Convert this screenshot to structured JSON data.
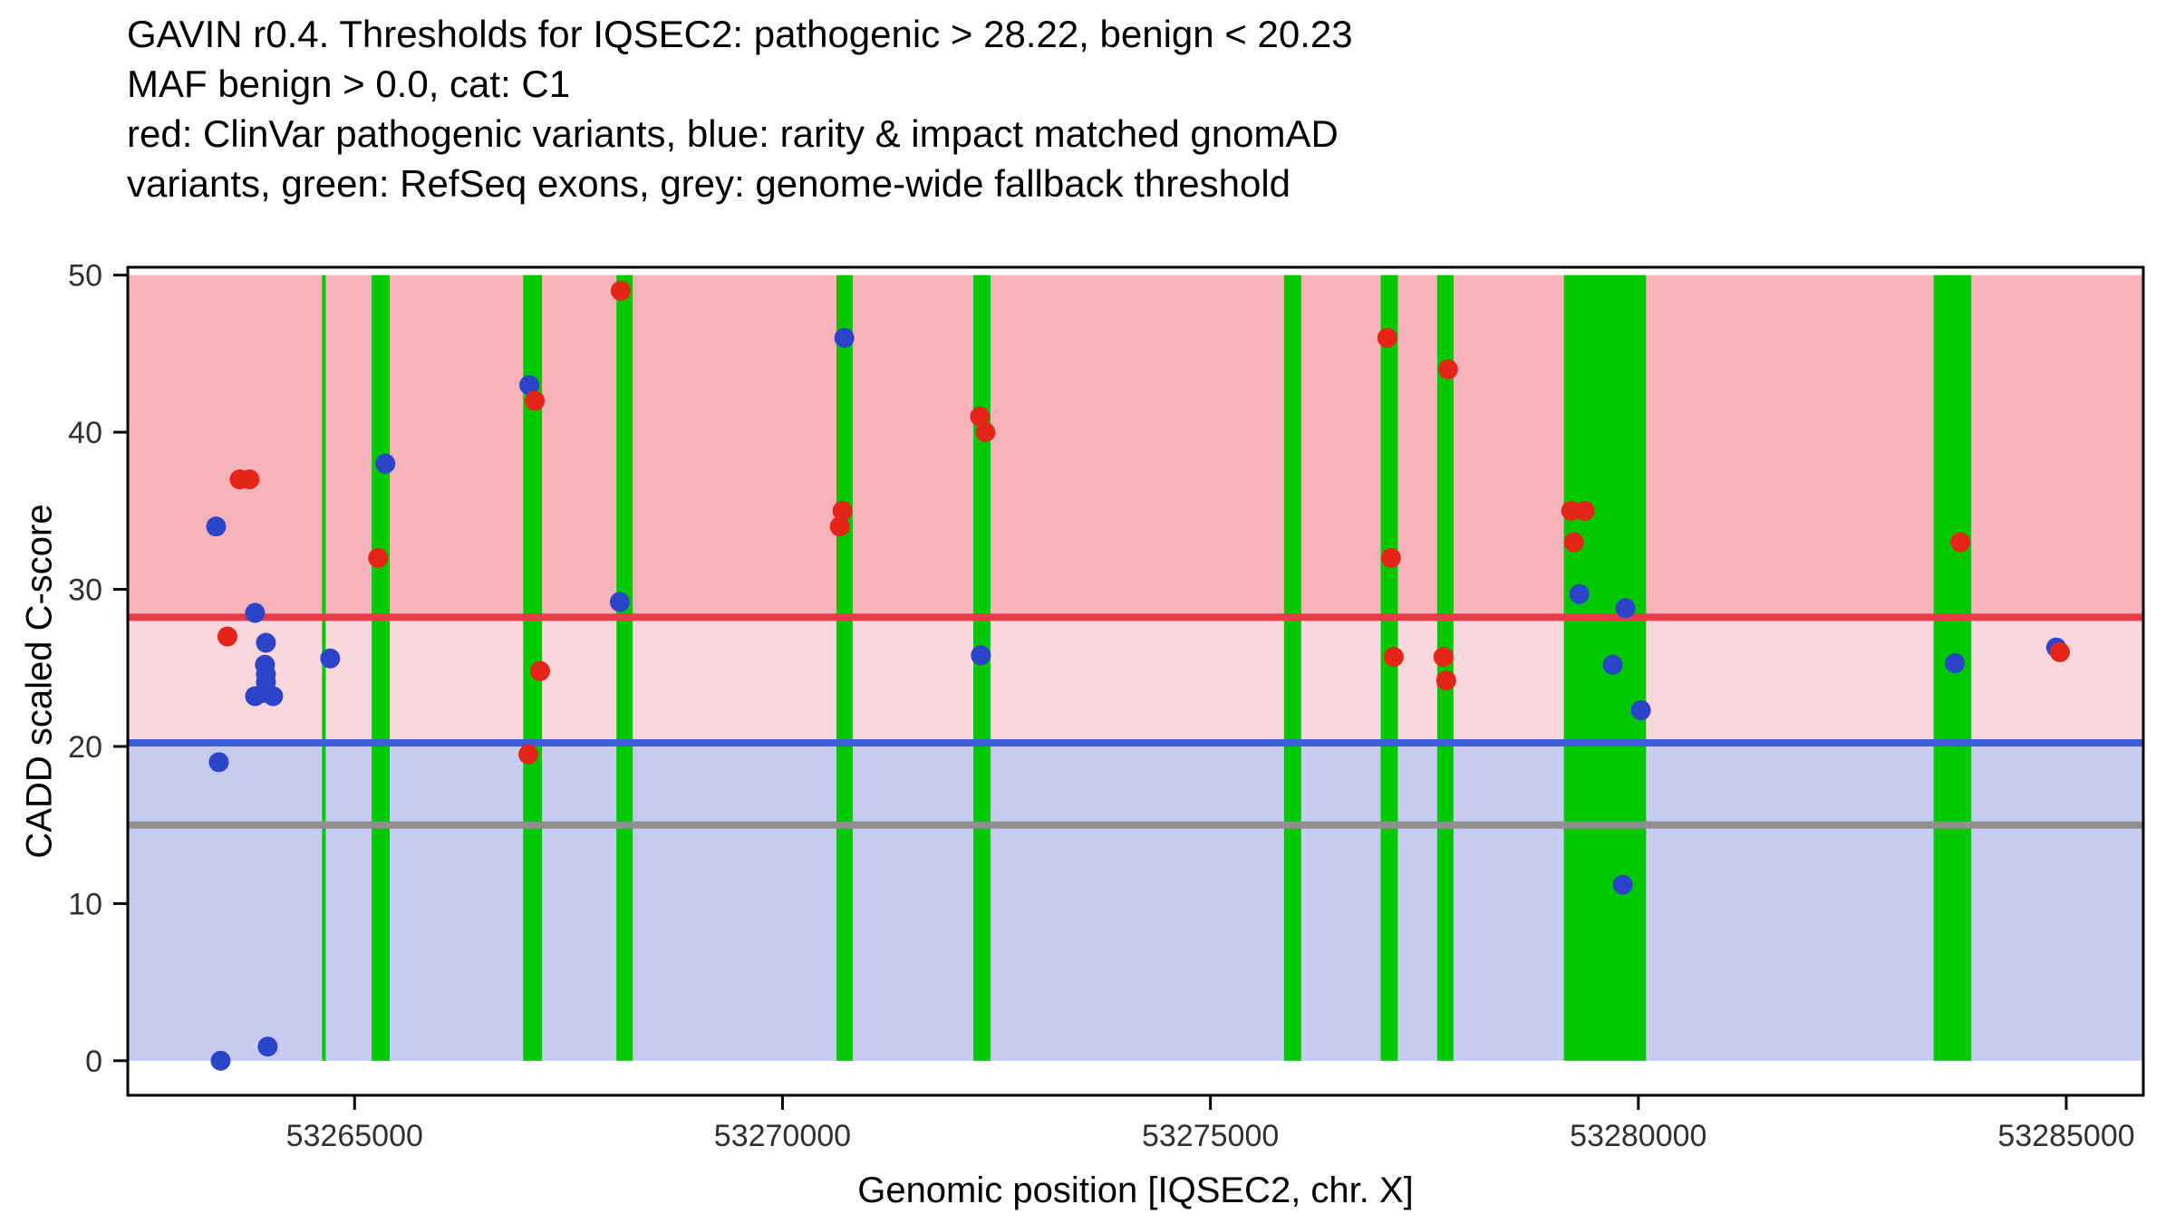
{
  "title_lines": [
    "GAVIN r0.4. Thresholds for IQSEC2: pathogenic > 28.22, benign < 20.23",
    "MAF benign > 0.0, cat: C1",
    "red: ClinVar pathogenic variants, blue: rarity & impact matched gnomAD",
    "variants, green: RefSeq exons, grey: genome-wide fallback threshold"
  ],
  "axes": {
    "x_label": "Genomic position [IQSEC2, chr. X]",
    "y_label": "CADD scaled C-score",
    "x_tick_labels": [
      "53265000",
      "53270000",
      "53275000",
      "53280000",
      "53285000"
    ],
    "y_tick_labels": [
      "0",
      "10",
      "20",
      "30",
      "40",
      "50"
    ]
  },
  "chart_data": {
    "type": "scatter",
    "title": "GAVIN r0.4. Thresholds for IQSEC2: pathogenic > 28.22, benign < 20.23",
    "xlabel": "Genomic position [IQSEC2, chr. X]",
    "ylabel": "CADD scaled C-score",
    "x_domain": [
      53262350,
      53285900
    ],
    "y_domain": [
      -2.2,
      50.5
    ],
    "x_ticks": [
      53265000,
      53270000,
      53275000,
      53280000,
      53285000
    ],
    "y_ticks": [
      0,
      10,
      20,
      30,
      40,
      50
    ],
    "grid": false,
    "regions": [
      {
        "name": "pathogenic-region",
        "from": 28.22,
        "to": 50,
        "fill": "#f7b3ba"
      },
      {
        "name": "intermediate-region",
        "from": 20.23,
        "to": 28.22,
        "fill": "#fad7dd"
      },
      {
        "name": "benign-region",
        "from": 0,
        "to": 20.23,
        "fill": "#c6cbef"
      }
    ],
    "thresholds": [
      {
        "name": "pathogenic-threshold",
        "value": 28.22,
        "color": "#e83a48"
      },
      {
        "name": "benign-threshold",
        "value": 20.23,
        "color": "#3e5cd8"
      },
      {
        "name": "genome-wide-fallback-threshold",
        "value": 15,
        "color": "#8f8f8f"
      }
    ],
    "exon_color": "#00c800",
    "exons": [
      [
        53264620,
        53264660
      ],
      [
        53265200,
        53265410
      ],
      [
        53266970,
        53267190
      ],
      [
        53268060,
        53268250
      ],
      [
        53270630,
        53270820
      ],
      [
        53272230,
        53272430
      ],
      [
        53275860,
        53276060
      ],
      [
        53276990,
        53277190
      ],
      [
        53277650,
        53277840
      ],
      [
        53279130,
        53280090
      ],
      [
        53283450,
        53283890
      ]
    ],
    "series": [
      {
        "name": "rarity & impact matched gnomAD variants",
        "color": "#2b44c8",
        "points": [
          [
            53263382,
            34
          ],
          [
            53263414,
            19
          ],
          [
            53263435,
            0
          ],
          [
            53263837,
            28.5
          ],
          [
            53263964,
            26.6
          ],
          [
            53263953,
            25.2
          ],
          [
            53263964,
            24.6
          ],
          [
            53263964,
            24.1
          ],
          [
            53263932,
            23.4
          ],
          [
            53263837,
            23.2
          ],
          [
            53264048,
            23.2
          ],
          [
            53263985,
            0.9
          ],
          [
            53264715,
            25.6
          ],
          [
            53265360,
            38
          ],
          [
            53267041,
            43
          ],
          [
            53268099,
            29.2
          ],
          [
            53270722,
            46
          ],
          [
            53272318,
            25.8
          ],
          [
            53279311,
            29.7
          ],
          [
            53279850,
            28.8
          ],
          [
            53279702,
            25.2
          ],
          [
            53280030,
            22.3
          ],
          [
            53279818,
            11.2
          ],
          [
            53283699,
            25.3
          ],
          [
            53284883,
            26.3
          ]
        ]
      },
      {
        "name": "ClinVar pathogenic variants",
        "color": "#e62519",
        "points": [
          [
            53263514,
            27
          ],
          [
            53263657,
            37
          ],
          [
            53263773,
            37
          ],
          [
            53265275,
            32
          ],
          [
            53267105,
            42
          ],
          [
            53267168,
            24.8
          ],
          [
            53267031,
            19.5
          ],
          [
            53268109,
            49
          ],
          [
            53270701,
            35
          ],
          [
            53270669,
            34
          ],
          [
            53272308,
            41
          ],
          [
            53272371,
            40
          ],
          [
            53277067,
            46
          ],
          [
            53277110,
            32
          ],
          [
            53277142,
            25.7
          ],
          [
            53277776,
            44
          ],
          [
            53277723,
            25.7
          ],
          [
            53277755,
            24.2
          ],
          [
            53279215,
            35
          ],
          [
            53279374,
            35
          ],
          [
            53279247,
            33
          ],
          [
            53283763,
            33
          ],
          [
            53284926,
            26
          ]
        ]
      }
    ]
  },
  "style": {
    "point_radius": 11,
    "threshold_line_width": 8,
    "axis_color": "#000000",
    "tick_label_color": "#303030"
  }
}
